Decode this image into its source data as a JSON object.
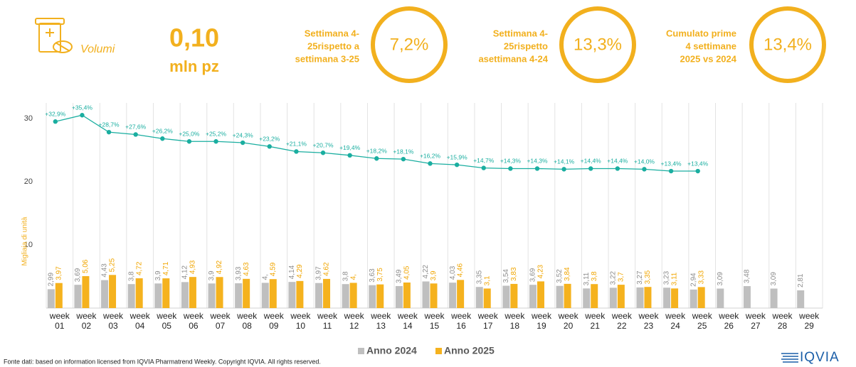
{
  "header": {
    "kpi_label": "Volumi",
    "kpi_value": "0,10",
    "kpi_unit": "mln pz",
    "comparisons": [
      {
        "lines": [
          "Settimana 4-",
          "25rispetto a",
          "settimana 3-25"
        ],
        "value": "7,2%"
      },
      {
        "lines": [
          "Settimana 4-",
          "25rispetto",
          "asettimana 4-24"
        ],
        "value": "13,3%"
      },
      {
        "lines": [
          "Cumulato prime",
          "4 settimane",
          "2025 vs 2024"
        ],
        "value": "13,4%"
      }
    ]
  },
  "chart_data": {
    "type": "bar_line",
    "y_label": "Migliaia di unità",
    "categories": [
      "week 01",
      "week 02",
      "week 03",
      "week 04",
      "week 05",
      "week 06",
      "week 07",
      "week 08",
      "week 09",
      "week 10",
      "week 11",
      "week 12",
      "week 13",
      "week 14",
      "week 15",
      "week 16",
      "week 17",
      "week 18",
      "week 19",
      "week 20",
      "week 21",
      "week 22",
      "week 23",
      "week 24",
      "week 25",
      "week 26",
      "week 27",
      "week 28",
      "week 29"
    ],
    "series": [
      {
        "name": "Anno 2024",
        "color": "#bfbfbf",
        "label_color": "#8c8c8c",
        "values": [
          2.99,
          3.69,
          4.43,
          3.8,
          3.9,
          4.12,
          3.9,
          3.93,
          4,
          4.14,
          3.97,
          3.8,
          3.63,
          3.49,
          4.22,
          4.03,
          3.35,
          3.54,
          3.69,
          3.52,
          3.11,
          3.22,
          3.27,
          3.23,
          2.94,
          3.09,
          3.48,
          3.09,
          2.81
        ],
        "value_labels": [
          "2,99",
          "3,69",
          "4,43",
          "3,8",
          "3,9",
          "4,12",
          "3,9",
          "3,93",
          "4,",
          "4,14",
          "3,97",
          "3,8",
          "3,63",
          "3,49",
          "4,22",
          "4,03",
          "3,35",
          "3,54",
          "3,69",
          "3,52",
          "3,11",
          "3,22",
          "3,27",
          "3,23",
          "2,94",
          "3,09",
          "3,48",
          "3,09",
          "2,81"
        ]
      },
      {
        "name": "Anno 2025",
        "color": "#f5b21e",
        "label_color": "#f0a500",
        "values": [
          3.97,
          5.06,
          5.25,
          4.72,
          4.71,
          4.93,
          4.92,
          4.63,
          4.59,
          4.29,
          4.62,
          4,
          3.75,
          4.05,
          3.9,
          4.46,
          3.1,
          3.83,
          4.23,
          3.84,
          3.8,
          3.7,
          3.35,
          3.11,
          3.33,
          null,
          null,
          null,
          null
        ],
        "value_labels": [
          "3,97",
          "5,06",
          "5,25",
          "4,72",
          "4,71",
          "4,93",
          "4,92",
          "4,63",
          "4,59",
          "4,29",
          "4,62",
          "4,",
          "3,75",
          "4,05",
          "3,9",
          "4,46",
          "3,1",
          "3,83",
          "4,23",
          "3,84",
          "3,8",
          "3,7",
          "3,35",
          "3,11",
          "3,33",
          null,
          null,
          null,
          null
        ]
      }
    ],
    "line": {
      "color": "#1aaea0",
      "values": [
        29.55,
        30.56,
        27.87,
        27.5,
        26.85,
        26.4,
        26.4,
        26.2,
        25.6,
        24.8,
        24.6,
        24.2,
        23.7,
        23.6,
        22.9,
        22.7,
        22.2,
        22.1,
        22.1,
        22.0,
        22.1,
        22.1,
        22.0,
        21.7,
        21.7,
        null,
        null,
        null,
        null
      ],
      "point_labels": [
        "+32,9%",
        "+35,4%",
        "+28,7%",
        "+27,6%",
        "+26,2%",
        "+25,0%",
        "+25,2%",
        "+24,3%",
        "+23,2%",
        "+21,1%",
        "+20,7%",
        "+19,4%",
        "+18,2%",
        "+18,1%",
        "+16,2%",
        "+15,9%",
        "+14,7%",
        "+14,3%",
        "+14,3%",
        "+14,1%",
        "+14,4%",
        "+14,4%",
        "+14,0%",
        "+13,4%",
        "+13,4%",
        null,
        null,
        null,
        null
      ]
    },
    "ylim": [
      0,
      32.5
    ],
    "yticks": [
      10,
      20,
      30
    ],
    "grid": "vertical",
    "legend": "bottom"
  },
  "footer": {
    "source": "Fonte dati: based on information licensed from IQVIA Pharmatrend Weekly. Copyright IQVIA. All rights reserved.",
    "logo": "IQVIA"
  }
}
